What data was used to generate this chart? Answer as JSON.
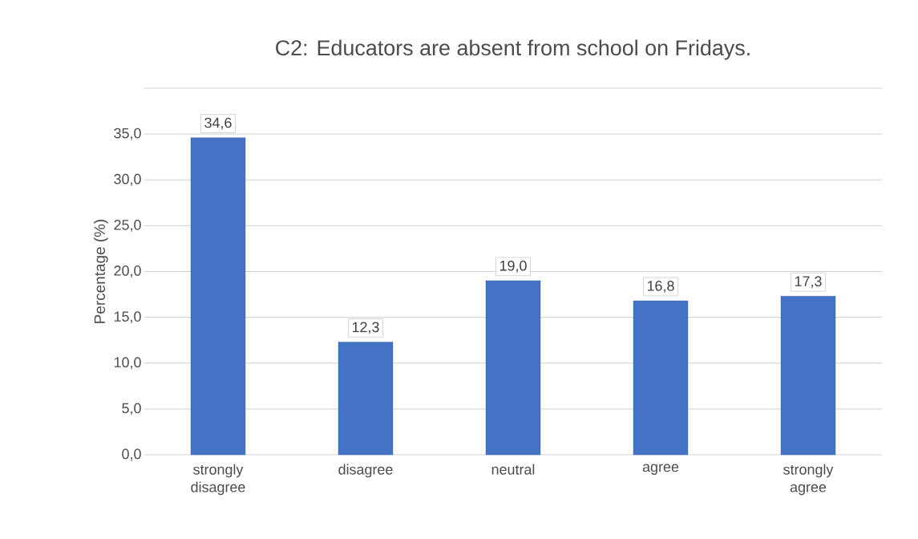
{
  "chart_data": {
    "type": "bar",
    "title": "C2: Educators are absent from school on Fridays.",
    "ylabel": "Percentage (%)",
    "categories": [
      "strongly disagree",
      "disagree",
      "neutral",
      "agree",
      "strongly agree"
    ],
    "values": [
      34.6,
      12.3,
      19.0,
      16.8,
      17.3
    ],
    "value_labels": [
      "34,6",
      "12,3",
      "19,0",
      "16,8",
      "17,3"
    ],
    "color": "#4472c4",
    "ylim": [
      0,
      40
    ],
    "yticks": [
      {
        "value": 0,
        "label": "0,0"
      },
      {
        "value": 5,
        "label": "5,0"
      },
      {
        "value": 10,
        "label": "10,0"
      },
      {
        "value": 15,
        "label": "15,0"
      },
      {
        "value": 20,
        "label": "20,0"
      },
      {
        "value": 25,
        "label": "25,0"
      },
      {
        "value": 30,
        "label": "30,0"
      },
      {
        "value": 35,
        "label": "35,0"
      },
      {
        "value": 40,
        "label": null
      }
    ],
    "grid": "y"
  }
}
